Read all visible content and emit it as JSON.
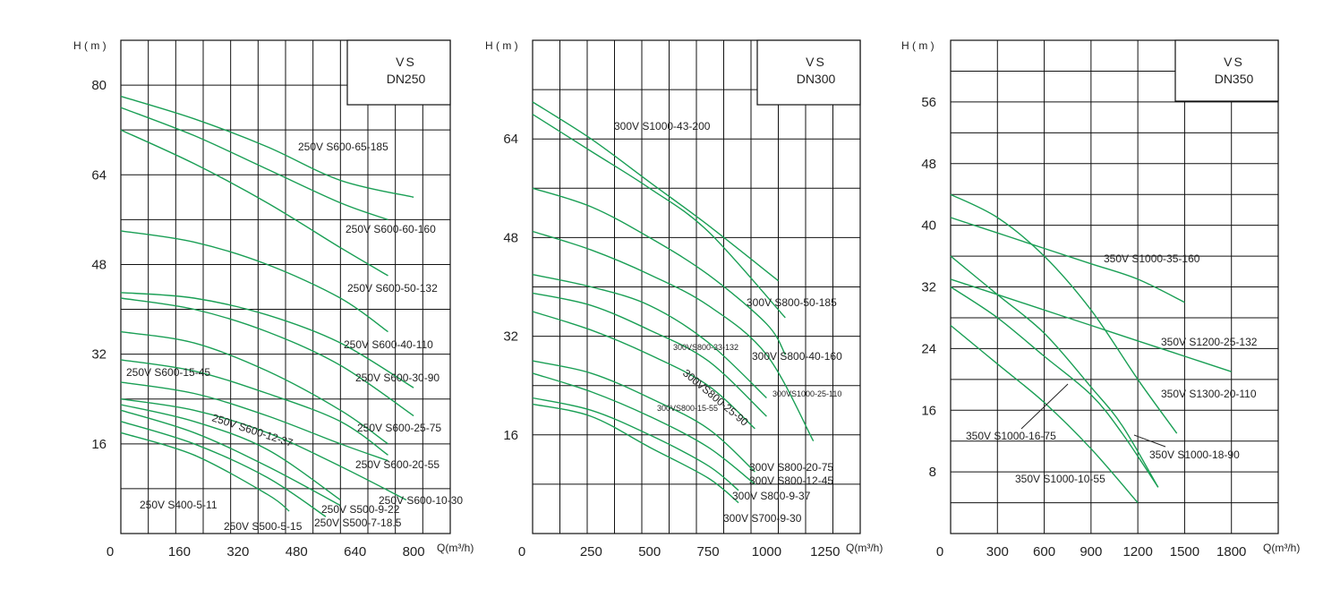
{
  "chart_data": [
    {
      "type": "line",
      "box_title": [
        "VS",
        "DN250"
      ],
      "ylabel": "H ( m )",
      "xlabel": "Q(m³/h)",
      "xlim": [
        0,
        900
      ],
      "ylim": [
        0,
        88
      ],
      "x_ticks": [
        0,
        160,
        320,
        480,
        640,
        800
      ],
      "x_tick_labels": [
        "0",
        "160",
        "320",
        "480",
        "640",
        "800"
      ],
      "y_ticks": [
        16,
        32,
        48,
        64,
        80
      ],
      "y_tick_labels": [
        "16",
        "32",
        "48",
        "64",
        "80"
      ],
      "grid": true,
      "series": [
        {
          "name": "250VS600-65-185",
          "x": [
            0,
            200,
            400,
            600,
            800
          ],
          "y": [
            78,
            74,
            69,
            63,
            60
          ]
        },
        {
          "name": "250VS600-60-160",
          "x": [
            0,
            200,
            400,
            600,
            730
          ],
          "y": [
            76,
            71,
            65,
            59,
            56
          ]
        },
        {
          "name": "250VS600-50-132",
          "x": [
            0,
            200,
            400,
            600,
            730
          ],
          "y": [
            72,
            66,
            59,
            51,
            46
          ]
        },
        {
          "name": "250VS600-40-110",
          "x": [
            0,
            200,
            400,
            600,
            730
          ],
          "y": [
            54,
            52,
            48,
            42,
            36
          ]
        },
        {
          "name": "250VS600-30-90",
          "x": [
            0,
            200,
            400,
            600,
            800
          ],
          "y": [
            43,
            42,
            39,
            34,
            26
          ]
        },
        {
          "name": "250VS600-25-75",
          "x": [
            0,
            200,
            400,
            600,
            800
          ],
          "y": [
            42,
            40,
            36,
            30,
            21
          ]
        },
        {
          "name": "250VS600-20-55",
          "x": [
            0,
            200,
            400,
            600,
            730
          ],
          "y": [
            36,
            34,
            29,
            22,
            16
          ]
        },
        {
          "name": "250VS600-15-45",
          "x": [
            0,
            200,
            400,
            600,
            730
          ],
          "y": [
            31,
            29,
            25,
            20,
            14
          ]
        },
        {
          "name": "250VS600-12-37",
          "x": [
            0,
            200,
            400,
            600,
            730
          ],
          "y": [
            27,
            25,
            21,
            16,
            13
          ]
        },
        {
          "name": "250VS600-10-30",
          "x": [
            0,
            200,
            400,
            600,
            780
          ],
          "y": [
            24,
            22,
            18,
            12,
            6
          ]
        },
        {
          "name": "250VS500-9-22",
          "x": [
            0,
            200,
            400,
            600
          ],
          "y": [
            23,
            20,
            15,
            6
          ]
        },
        {
          "name": "250VS500-7-18.5",
          "x": [
            0,
            200,
            400,
            600
          ],
          "y": [
            22,
            18,
            12,
            5
          ]
        },
        {
          "name": "250VS500-5-15",
          "x": [
            0,
            200,
            400,
            560
          ],
          "y": [
            20,
            16,
            10,
            3
          ]
        },
        {
          "name": "250VS400-5-11",
          "x": [
            0,
            200,
            400,
            460
          ],
          "y": [
            18,
            14,
            7,
            4
          ]
        }
      ],
      "curve_labels": [
        {
          "text": "250V S600-65-185"
        },
        {
          "text": "250V S600-60-160"
        },
        {
          "text": "250V S600-50-132"
        },
        {
          "text": "250V S600-40-110"
        },
        {
          "text": "250V S600-30-90"
        },
        {
          "text": "250V S600-25-75"
        },
        {
          "text": "250V S600-20-55"
        },
        {
          "text": "250V S600-15-45"
        },
        {
          "text": "250V S600-12-37"
        },
        {
          "text": "250V S600-10-30"
        },
        {
          "text": "250V S500-9-22"
        },
        {
          "text": "250V S500-7-18.5"
        },
        {
          "text": "250V S500-5-15"
        },
        {
          "text": "250V S400-5-11"
        }
      ]
    },
    {
      "type": "line",
      "box_title": [
        "VS",
        "DN300"
      ],
      "ylabel": "H ( m )",
      "xlabel": "Q(m³/h)",
      "xlim": [
        0,
        1400
      ],
      "ylim": [
        0,
        80
      ],
      "x_ticks": [
        0,
        250,
        500,
        750,
        1000,
        1250
      ],
      "x_tick_labels": [
        "0",
        "250",
        "500",
        "750",
        "1000",
        "1250"
      ],
      "y_ticks": [
        16,
        32,
        48,
        64
      ],
      "y_tick_labels": [
        "16",
        "32",
        "48",
        "64"
      ],
      "grid": true,
      "series": [
        {
          "name": "300VS1000-43-200",
          "x": [
            0,
            250,
            500,
            750,
            1050
          ],
          "y": [
            70,
            64,
            57,
            50,
            41
          ]
        },
        {
          "name": "300VS800-50-185",
          "x": [
            0,
            250,
            500,
            750,
            1080
          ],
          "y": [
            68,
            62,
            56,
            49,
            35
          ]
        },
        {
          "name": "300VS800-40-160",
          "x": [
            0,
            250,
            500,
            750,
            1000,
            1080
          ],
          "y": [
            56,
            53,
            48,
            42,
            34,
            29
          ]
        },
        {
          "name": "300VS1000-25-110",
          "x": [
            0,
            250,
            500,
            750,
            1000,
            1200
          ],
          "y": [
            49,
            46,
            42,
            37,
            29,
            15
          ]
        },
        {
          "name": "300VS800-33-132",
          "x": [
            0,
            250,
            500,
            750,
            1000
          ],
          "y": [
            42,
            40,
            37,
            31,
            22
          ]
        },
        {
          "name": "300VS800-25-90",
          "x": [
            0,
            250,
            500,
            750,
            1000
          ],
          "y": [
            39,
            37,
            33,
            28,
            19
          ]
        },
        {
          "name": "300VS800-20-75",
          "x": [
            0,
            250,
            500,
            750,
            950
          ],
          "y": [
            36,
            33,
            29,
            24,
            17
          ]
        },
        {
          "name": "300VS800-15-55",
          "x": [
            0,
            250,
            500,
            750,
            950
          ],
          "y": [
            28,
            26,
            22,
            17,
            10
          ]
        },
        {
          "name": "300VS800-12-45",
          "x": [
            0,
            250,
            500,
            750,
            950
          ],
          "y": [
            26,
            23,
            19,
            14,
            8
          ]
        },
        {
          "name": "300VS800-9-37",
          "x": [
            0,
            250,
            500,
            750,
            880
          ],
          "y": [
            22,
            20,
            16,
            11,
            7
          ]
        },
        {
          "name": "300VS700-9-30",
          "x": [
            0,
            250,
            500,
            750,
            880
          ],
          "y": [
            21,
            19,
            14,
            9,
            5
          ]
        }
      ],
      "curve_labels": [
        {
          "text": "300V S1000-43-200"
        },
        {
          "text": "300V S800-50-185"
        },
        {
          "text": "300V S800-40-160"
        },
        {
          "text": "300VS1000-25-110"
        },
        {
          "text": "300VS800-33-132"
        },
        {
          "text": "300VS800-25-90"
        },
        {
          "text": "300VS800-15-55"
        },
        {
          "text": "300V S800-20-75"
        },
        {
          "text": "300V S800-12-45"
        },
        {
          "text": "300V S800-9-37"
        },
        {
          "text": "300V S700-9-30"
        }
      ]
    },
    {
      "type": "line",
      "box_title": [
        "VS",
        "DN350"
      ],
      "ylabel": "H ( m )",
      "xlabel": "Q(m³/h)",
      "xlim": [
        0,
        2100
      ],
      "ylim": [
        0,
        64
      ],
      "x_ticks": [
        0,
        300,
        600,
        900,
        1200,
        1500,
        1800
      ],
      "x_tick_labels": [
        "0",
        "300",
        "600",
        "900",
        "1200",
        "1500",
        "1800"
      ],
      "y_ticks": [
        8,
        16,
        24,
        32,
        40,
        48,
        56
      ],
      "y_tick_labels": [
        "8",
        "16",
        "24",
        "32",
        "40",
        "48",
        "56"
      ],
      "grid": true,
      "series": [
        {
          "name": "350VS1000-35-160",
          "x": [
            0,
            300,
            600,
            900,
            1200,
            1500
          ],
          "y": [
            41,
            39,
            37,
            35,
            33,
            30
          ]
        },
        {
          "name": "350VS1200-25-132",
          "x": [
            0,
            300,
            600,
            900,
            1200,
            1500,
            1800
          ],
          "y": [
            33,
            31,
            29,
            27,
            25,
            23,
            21
          ]
        },
        {
          "name": "350VS1300-20-110",
          "x": [
            0,
            300,
            600,
            900,
            1200,
            1450
          ],
          "y": [
            44,
            41,
            36,
            29,
            20,
            13
          ]
        },
        {
          "name": "350VS1000-18-90",
          "x": [
            0,
            300,
            600,
            900,
            1100,
            1330
          ],
          "y": [
            36,
            31,
            26,
            19,
            14,
            6
          ]
        },
        {
          "name": "350VS1000-16-75",
          "x": [
            0,
            300,
            600,
            900,
            1100,
            1330
          ],
          "y": [
            32,
            28,
            23,
            18,
            13,
            6
          ]
        },
        {
          "name": "350VS1000-10-55",
          "x": [
            0,
            300,
            600,
            900,
            1200
          ],
          "y": [
            27,
            22,
            17,
            11,
            4
          ]
        }
      ],
      "curve_labels": [
        {
          "text": "350V S1000-35-160"
        },
        {
          "text": "350V S1200-25-132"
        },
        {
          "text": "350V S1300-20-110"
        },
        {
          "text": "350V S1000-18-90"
        },
        {
          "text": "350V S1000-16-75"
        },
        {
          "text": "350V S1000-10-55"
        }
      ]
    }
  ],
  "colors": {
    "curve": "#1a9f55",
    "grid": "#111111",
    "text": "#222222"
  }
}
